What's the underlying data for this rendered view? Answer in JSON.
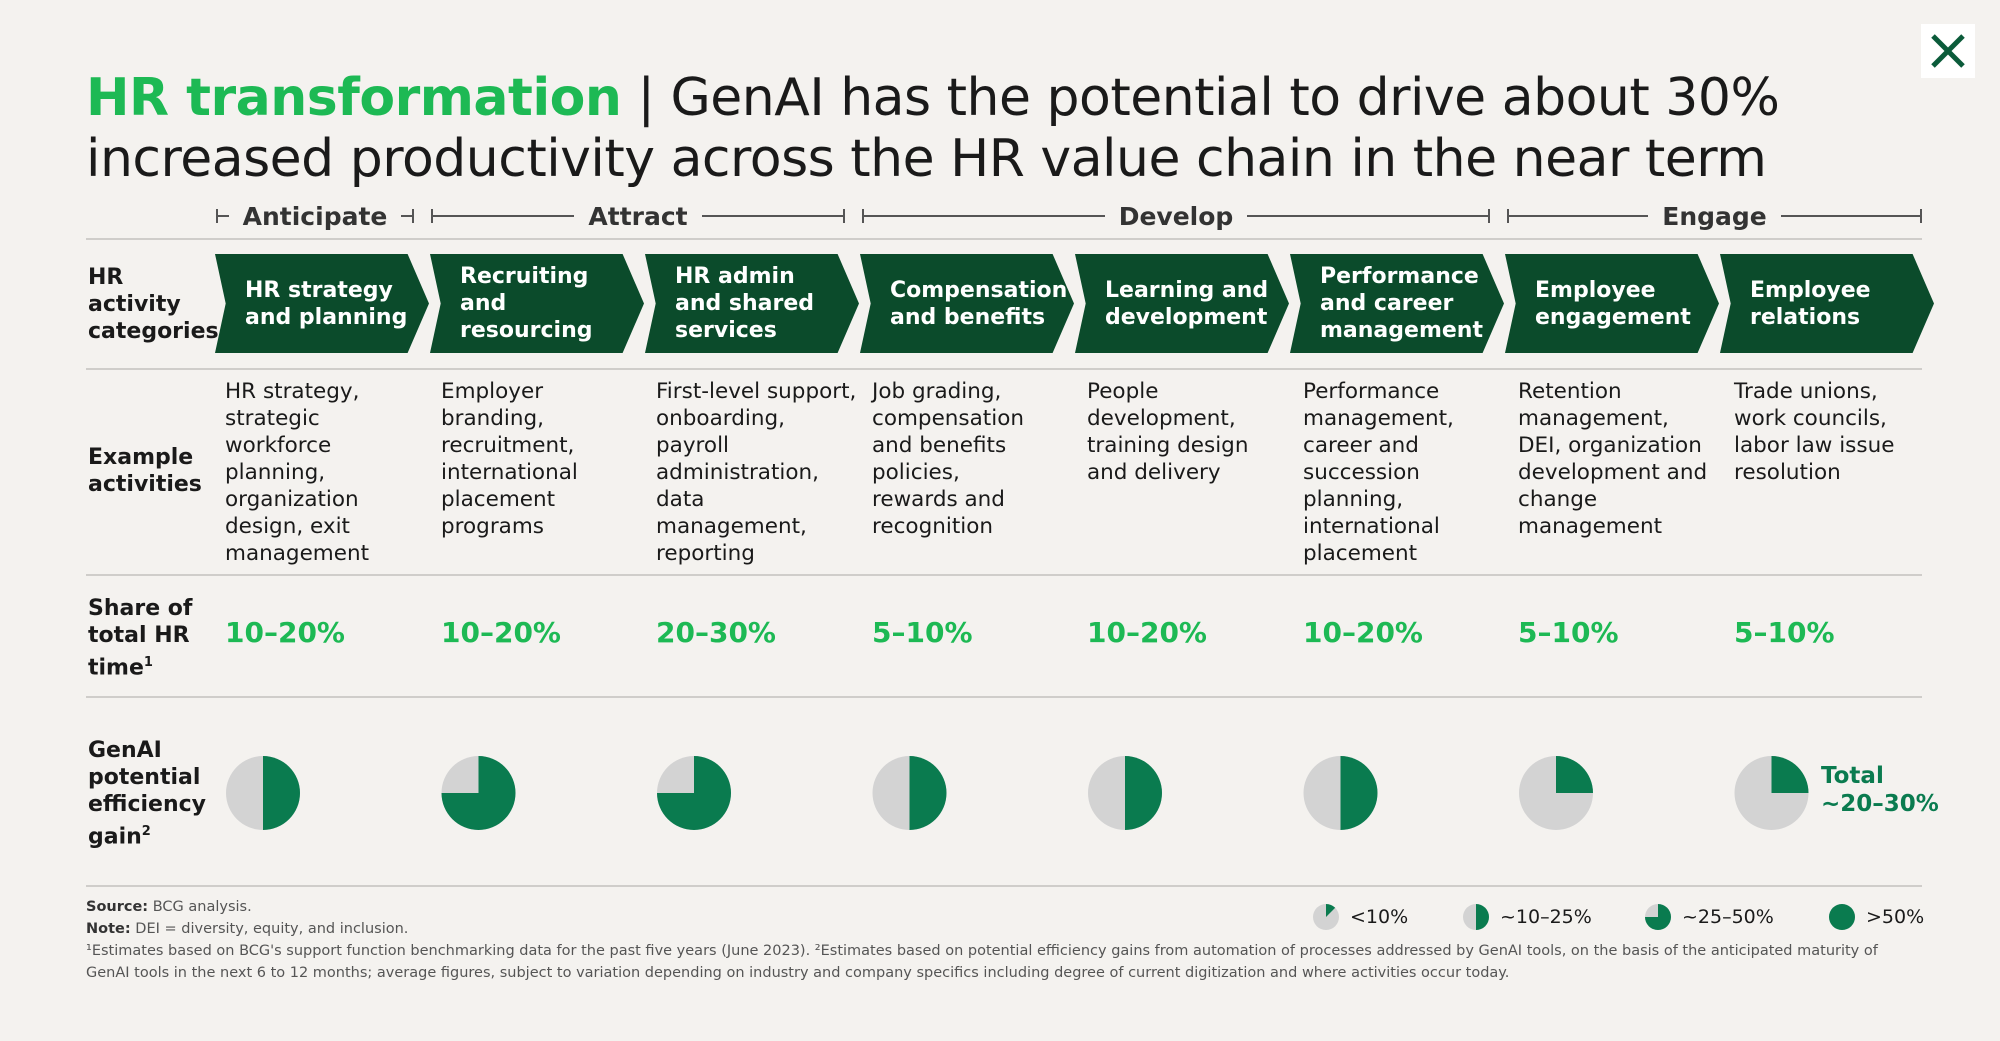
{
  "title": {
    "accent": "HR transformation",
    "separator": "|",
    "main": "GenAI has the potential to drive about 30% increased productivity across the HR value chain in the near term"
  },
  "phases": [
    "Anticipate",
    "Attract",
    "Develop",
    "Engage"
  ],
  "row_labels": {
    "categories": "HR activity categories",
    "activities": "Example activities",
    "share": "Share of total HR time",
    "share_sup": "1",
    "gain": "GenAI potential efficiency gain",
    "gain_sup": "2"
  },
  "close_icon": "close-icon",
  "colors": {
    "accent_green": "#1db954",
    "dark_green": "#0b4b2b",
    "pie_green": "#0a7b4f",
    "pie_grey": "#d3d3d3"
  },
  "chart_data": {
    "type": "table",
    "columns": [
      {
        "category": "HR strategy and planning",
        "activities": "HR strategy, strategic workforce planning, organization design, exit management",
        "share": "10–20%",
        "gain_fraction": 0.5
      },
      {
        "category": "Recruiting and resourcing",
        "activities": "Employer branding, recruitment, international placement programs",
        "share": "10–20%",
        "gain_fraction": 0.75
      },
      {
        "category": "HR admin and shared services",
        "activities": "First-level support, onboarding, payroll administration, data management, reporting",
        "share": "20–30%",
        "gain_fraction": 0.75
      },
      {
        "category": "Compensation and benefits",
        "activities": "Job grading, compensation and benefits policies, rewards and recognition",
        "share": "5–10%",
        "gain_fraction": 0.5
      },
      {
        "category": "Learning and development",
        "activities": "People development, training design and delivery",
        "share": "10–20%",
        "gain_fraction": 0.5
      },
      {
        "category": "Performance and career management",
        "activities": "Performance management, career and succession planning, international placement",
        "share": "10–20%",
        "gain_fraction": 0.5
      },
      {
        "category": "Employee engagement",
        "activities": "Retention management, DEI, organization development and change management",
        "share": "5–10%",
        "gain_fraction": 0.25
      },
      {
        "category": "Employee relations",
        "activities": "Trade unions, work councils, labor law issue resolution",
        "share": "5–10%",
        "gain_fraction": 0.25
      }
    ],
    "total": {
      "label": "Total",
      "value": "~20–30%"
    }
  },
  "legend": [
    {
      "label": "<10%",
      "fraction": 0.125
    },
    {
      "label": "~10–25%",
      "fraction": 0.5
    },
    {
      "label": "~25–50%",
      "fraction": 0.75
    },
    {
      "label": ">50%",
      "fraction": 1.0
    }
  ],
  "footer": {
    "source_label": "Source:",
    "source": "BCG analysis.",
    "note_label": "Note:",
    "note": "DEI = diversity, equity, and inclusion.",
    "footnotes": "¹Estimates based on BCG's support function benchmarking data for the past five years (June 2023). ²Estimates based on potential efficiency gains from automation of processes addressed by GenAI tools, on the basis of the anticipated maturity of GenAI tools in the next 6 to 12 months; average figures, subject to variation depending on industry and company specifics including degree of current digitization and where activities occur today."
  }
}
